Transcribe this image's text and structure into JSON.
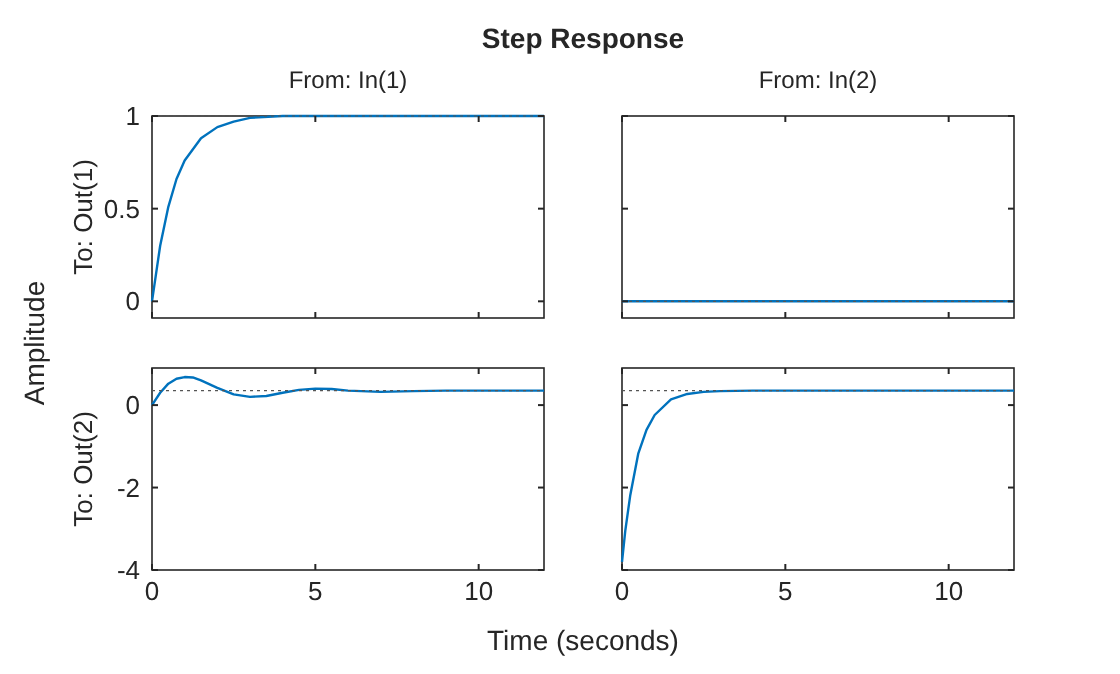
{
  "chart_data": [
    {
      "type": "line",
      "title": "Step Response",
      "subtitle": "From: In(1)",
      "ylabel": "To: Out(1)",
      "annotations": [
        "Amplitude"
      ],
      "x": [
        0,
        0.25,
        0.5,
        0.75,
        1,
        1.5,
        2,
        2.5,
        3,
        4,
        5,
        6,
        8,
        10,
        12
      ],
      "series": [
        {
          "color": "#0072bd",
          "values": [
            0,
            0.3,
            0.51,
            0.66,
            0.76,
            0.88,
            0.94,
            0.97,
            0.99,
            1,
            1,
            1,
            1,
            1,
            1
          ]
        }
      ],
      "xlim": [
        0,
        12
      ],
      "xticks": [
        0,
        5,
        10
      ],
      "ylim": [
        -0.09,
        1
      ],
      "yticks": [
        0,
        0.5,
        1
      ],
      "tick_labels": "y",
      "ref_lines": [
        {
          "axis": "y",
          "value": 1,
          "label": null,
          "color": "#555555",
          "line_style": "dotted"
        }
      ]
    },
    {
      "type": "line",
      "subtitle": "From: In(2)",
      "x": [
        0,
        12
      ],
      "series": [
        {
          "color": "#0072bd",
          "values": [
            0,
            0
          ]
        }
      ],
      "xlim": [
        0,
        12
      ],
      "xticks": [
        0,
        5,
        10
      ],
      "ylim": [
        -0.09,
        1
      ],
      "yticks": [
        0,
        0.5,
        1
      ],
      "tick_labels": false,
      "ref_lines": [
        {
          "axis": "y",
          "value": 0,
          "label": null,
          "color": "#555555",
          "line_style": "dotted"
        }
      ]
    },
    {
      "type": "line",
      "ylabel": "To: Out(2)",
      "xlabel": "Time (seconds)",
      "x": [
        0,
        0.25,
        0.5,
        0.75,
        1,
        1.25,
        1.5,
        2,
        2.5,
        3,
        3.5,
        4,
        4.5,
        5,
        5.5,
        6,
        7,
        8,
        9,
        10,
        12
      ],
      "series": [
        {
          "color": "#0072bd",
          "values": [
            0,
            0.3,
            0.52,
            0.64,
            0.68,
            0.67,
            0.6,
            0.42,
            0.26,
            0.2,
            0.22,
            0.3,
            0.37,
            0.4,
            0.39,
            0.35,
            0.32,
            0.34,
            0.35,
            0.35,
            0.35
          ]
        }
      ],
      "xlim": [
        0,
        12
      ],
      "xticks": [
        0,
        5,
        10
      ],
      "ylim": [
        -4,
        0.9
      ],
      "yticks": [
        -4,
        -2,
        0
      ],
      "ref_lines": [
        {
          "axis": "y",
          "value": 0.35,
          "label": null,
          "color": "#555555",
          "line_style": "dotted"
        }
      ]
    },
    {
      "type": "line",
      "x": [
        0,
        0.1,
        0.25,
        0.5,
        0.75,
        1,
        1.5,
        2,
        2.5,
        3,
        4,
        6,
        8,
        10,
        12
      ],
      "series": [
        {
          "color": "#0072bd",
          "values": [
            -3.8,
            -3.05,
            -2.2,
            -1.17,
            -0.6,
            -0.24,
            0.14,
            0.27,
            0.32,
            0.34,
            0.35,
            0.35,
            0.35,
            0.35,
            0.35
          ]
        }
      ],
      "xlim": [
        0,
        12
      ],
      "xticks": [
        0,
        5,
        10
      ],
      "ylim": [
        -4,
        0.9
      ],
      "yticks": [
        -4,
        -2,
        0
      ],
      "tick_labels": "x",
      "ref_lines": [
        {
          "axis": "y",
          "value": 0.35,
          "label": null,
          "color": "#555555",
          "line_style": "dotted"
        }
      ]
    }
  ]
}
